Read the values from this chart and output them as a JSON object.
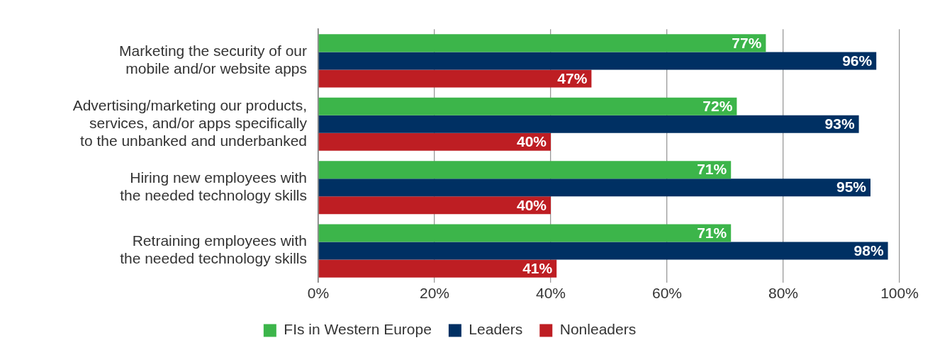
{
  "chart_data": {
    "type": "bar",
    "orientation": "horizontal",
    "categories": [
      "Marketing the security of our\nmobile and/or website apps",
      "Advertising/marketing our products,\nservices, and/or apps specifically\nto the unbanked and underbanked",
      "Hiring new employees with\nthe needed technology skills",
      "Retraining employees with\nthe needed technology skills"
    ],
    "series": [
      {
        "name": "FIs in Western Europe",
        "color": "#3cb54a",
        "values": [
          77,
          72,
          71,
          71
        ],
        "value_labels": [
          "77%",
          "72%",
          "71%",
          "71%"
        ]
      },
      {
        "name": "Leaders",
        "color": "#003063",
        "values": [
          96,
          93,
          95,
          98
        ],
        "value_labels": [
          "96%",
          "93%",
          "95%",
          "98%"
        ]
      },
      {
        "name": "Nonleaders",
        "color": "#be1e23",
        "values": [
          47,
          40,
          40,
          41
        ],
        "value_labels": [
          "47%",
          "40%",
          "40%",
          "41%"
        ]
      }
    ],
    "xlim": [
      0,
      100
    ],
    "xticks": [
      {
        "value": 0,
        "label": "0%"
      },
      {
        "value": 20,
        "label": "20%"
      },
      {
        "value": 40,
        "label": "40%"
      },
      {
        "value": 60,
        "label": "60%"
      },
      {
        "value": 80,
        "label": "80%"
      },
      {
        "value": 100,
        "label": "100%"
      }
    ],
    "grid": "x",
    "legend": "bottom"
  }
}
